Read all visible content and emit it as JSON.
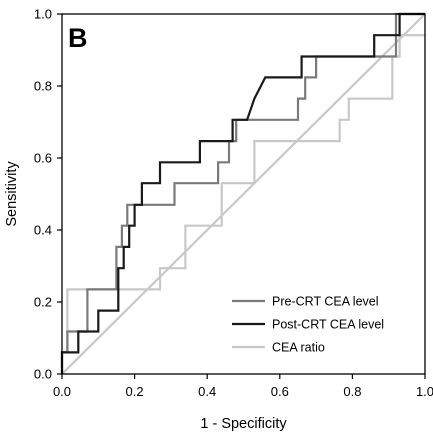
{
  "panel_label": "B",
  "chart_data": {
    "type": "line",
    "title": "",
    "xlabel": "1 - Specificity",
    "ylabel": "Sensitivity",
    "xlim": [
      0,
      1
    ],
    "ylim": [
      0,
      1
    ],
    "x_ticks": [
      "0.0",
      "0.2",
      "0.4",
      "0.6",
      "0.8",
      "1.0"
    ],
    "y_ticks": [
      "0.0",
      "0.2",
      "0.4",
      "0.6",
      "0.8",
      "1.0"
    ],
    "grid": false,
    "legend_position": "bottom-right",
    "reference_line": {
      "x": [
        0,
        1
      ],
      "y": [
        0,
        1
      ],
      "color": "#c8c8c8"
    },
    "series": [
      {
        "name": "Pre-CRT CEA level",
        "color": "#7a7a7a",
        "x": [
          0,
          0,
          0.015,
          0.015,
          0.07,
          0.07,
          0.15,
          0.15,
          0.165,
          0.165,
          0.18,
          0.18,
          0.31,
          0.31,
          0.33,
          0.33,
          0.43,
          0.43,
          0.46,
          0.46,
          0.48,
          0.48,
          0.5,
          0.5,
          0.56,
          0.56,
          0.65,
          0.65,
          0.67,
          0.67,
          0.7,
          0.7,
          0.92,
          0.92,
          1.0
        ],
        "y": [
          0,
          0.06,
          0.06,
          0.118,
          0.118,
          0.235,
          0.235,
          0.353,
          0.353,
          0.412,
          0.412,
          0.47,
          0.47,
          0.53,
          0.53,
          0.53,
          0.53,
          0.588,
          0.588,
          0.647,
          0.647,
          0.706,
          0.706,
          0.706,
          0.706,
          0.706,
          0.706,
          0.765,
          0.765,
          0.824,
          0.824,
          0.882,
          0.882,
          1.0,
          1.0
        ]
      },
      {
        "name": "Post-CRT CEA level",
        "color": "#1a1a1a",
        "x": [
          0,
          0,
          0.045,
          0.045,
          0.07,
          0.07,
          0.1,
          0.1,
          0.13,
          0.13,
          0.155,
          0.155,
          0.17,
          0.17,
          0.185,
          0.185,
          0.2,
          0.2,
          0.22,
          0.22,
          0.27,
          0.27,
          0.38,
          0.38,
          0.47,
          0.47,
          0.49,
          0.51,
          0.53,
          0.56,
          0.66,
          0.66,
          0.86,
          0.86,
          0.93,
          0.93,
          1.0
        ],
        "y": [
          0,
          0.06,
          0.06,
          0.118,
          0.118,
          0.118,
          0.118,
          0.176,
          0.176,
          0.176,
          0.176,
          0.294,
          0.294,
          0.353,
          0.353,
          0.412,
          0.412,
          0.47,
          0.47,
          0.53,
          0.53,
          0.588,
          0.588,
          0.647,
          0.647,
          0.706,
          0.706,
          0.706,
          0.765,
          0.824,
          0.824,
          0.882,
          0.882,
          0.941,
          0.941,
          1.0,
          1.0
        ]
      },
      {
        "name": "CEA ratio",
        "color": "#c8c8c8",
        "x": [
          0,
          0,
          0.015,
          0.015,
          0.27,
          0.27,
          0.34,
          0.34,
          0.44,
          0.44,
          0.53,
          0.53,
          0.765,
          0.765,
          0.79,
          0.79,
          0.82,
          0.82,
          0.91,
          0.91,
          0.93,
          0.93,
          1.0
        ],
        "y": [
          0,
          0.06,
          0.06,
          0.235,
          0.235,
          0.294,
          0.294,
          0.412,
          0.412,
          0.53,
          0.53,
          0.647,
          0.647,
          0.706,
          0.706,
          0.765,
          0.765,
          0.765,
          0.765,
          0.882,
          0.882,
          0.941,
          0.941
        ]
      }
    ]
  }
}
